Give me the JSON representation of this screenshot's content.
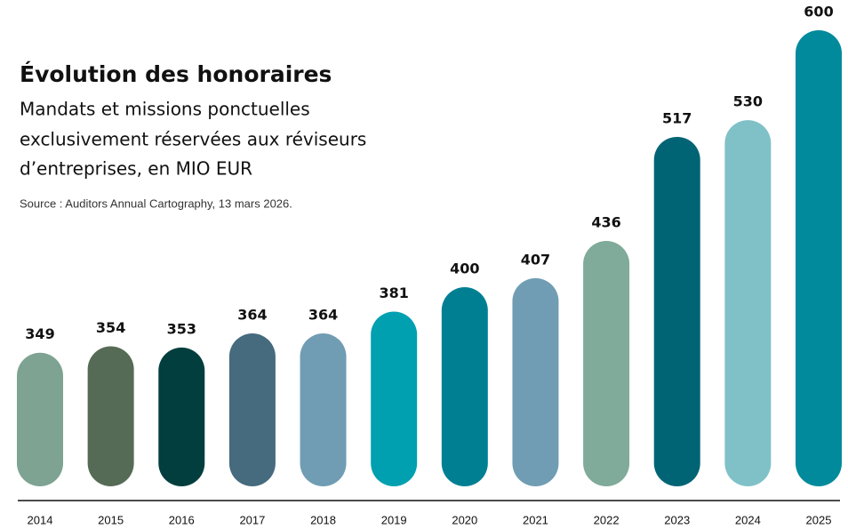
{
  "chart_data": {
    "type": "bar",
    "title": "Évolution des honoraires",
    "subtitle": [
      "Mandats et missions ponctuelles",
      "exclusivement réservées aux réviseurs",
      "d’entreprises, en MIO EUR"
    ],
    "source": "Source : Auditors Annual Cartography, 13 mars 2026.",
    "categories": [
      "2014",
      "2015",
      "2016",
      "2017",
      "2018",
      "2019",
      "2020",
      "2021",
      "2022",
      "2023",
      "2024",
      "2025"
    ],
    "values": [
      349,
      354,
      353,
      364,
      364,
      381,
      400,
      407,
      436,
      517,
      530,
      600
    ],
    "colors": [
      "#7ea393",
      "#566b56",
      "#033e3e",
      "#466a7e",
      "#709db3",
      "#00a0b0",
      "#007f93",
      "#709db3",
      "#80aa9a",
      "#006475",
      "#80c1c8",
      "#008a9c"
    ],
    "ylim": [
      245,
      600
    ]
  }
}
